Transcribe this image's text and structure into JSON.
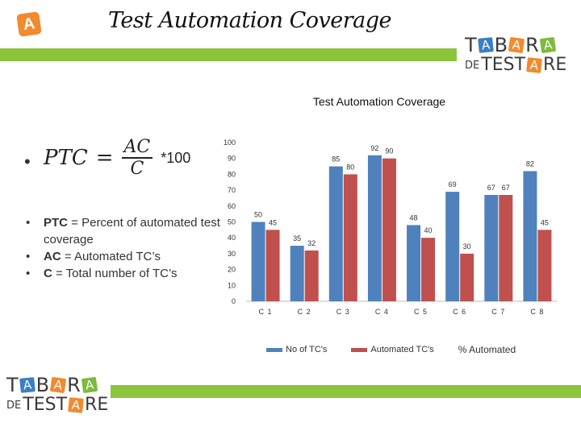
{
  "header": {
    "title": "Test Automation Coverage",
    "app_icon_letter": "A"
  },
  "logo": {
    "line1": [
      "T",
      "A",
      "B",
      "A",
      "R",
      "A"
    ],
    "line2": [
      "DE",
      "T",
      "E",
      "S",
      "T",
      "A",
      "R",
      "E"
    ]
  },
  "formula": {
    "lhs": "PTC",
    "eq": "=",
    "numerator": "AC",
    "denominator": "C",
    "factor": "*100"
  },
  "bullets": [
    {
      "term": "PTC",
      "text": " = Percent of automated test coverage"
    },
    {
      "term": "AC",
      "text": " = Automated TC’s"
    },
    {
      "term": "C",
      "text": " = Total number of TC’s"
    }
  ],
  "colors": {
    "series1": "#4f81bd",
    "series2": "#c0504d",
    "green_bar": "#8cc43c",
    "logo_orange": "#f28a2e",
    "logo_blue": "#3a7fc4",
    "logo_green": "#7cbb3c"
  },
  "chart_data": {
    "type": "bar",
    "title": "Test Automation Coverage",
    "categories": [
      "C 1",
      "C 2",
      "C 3",
      "C 4",
      "C 5",
      "C 6",
      "C 7",
      "C 8"
    ],
    "series": [
      {
        "name": "No of TC's",
        "values": [
          50,
          35,
          85,
          92,
          48,
          69,
          67,
          82
        ]
      },
      {
        "name": "Automated TC's",
        "values": [
          45,
          32,
          80,
          90,
          40,
          30,
          67,
          45
        ]
      }
    ],
    "legend_extra": "% Automated",
    "ylim": [
      0,
      100
    ],
    "yticks": [
      0,
      10,
      20,
      30,
      40,
      50,
      60,
      70,
      80,
      90,
      100
    ],
    "legend_position": "bottom"
  }
}
